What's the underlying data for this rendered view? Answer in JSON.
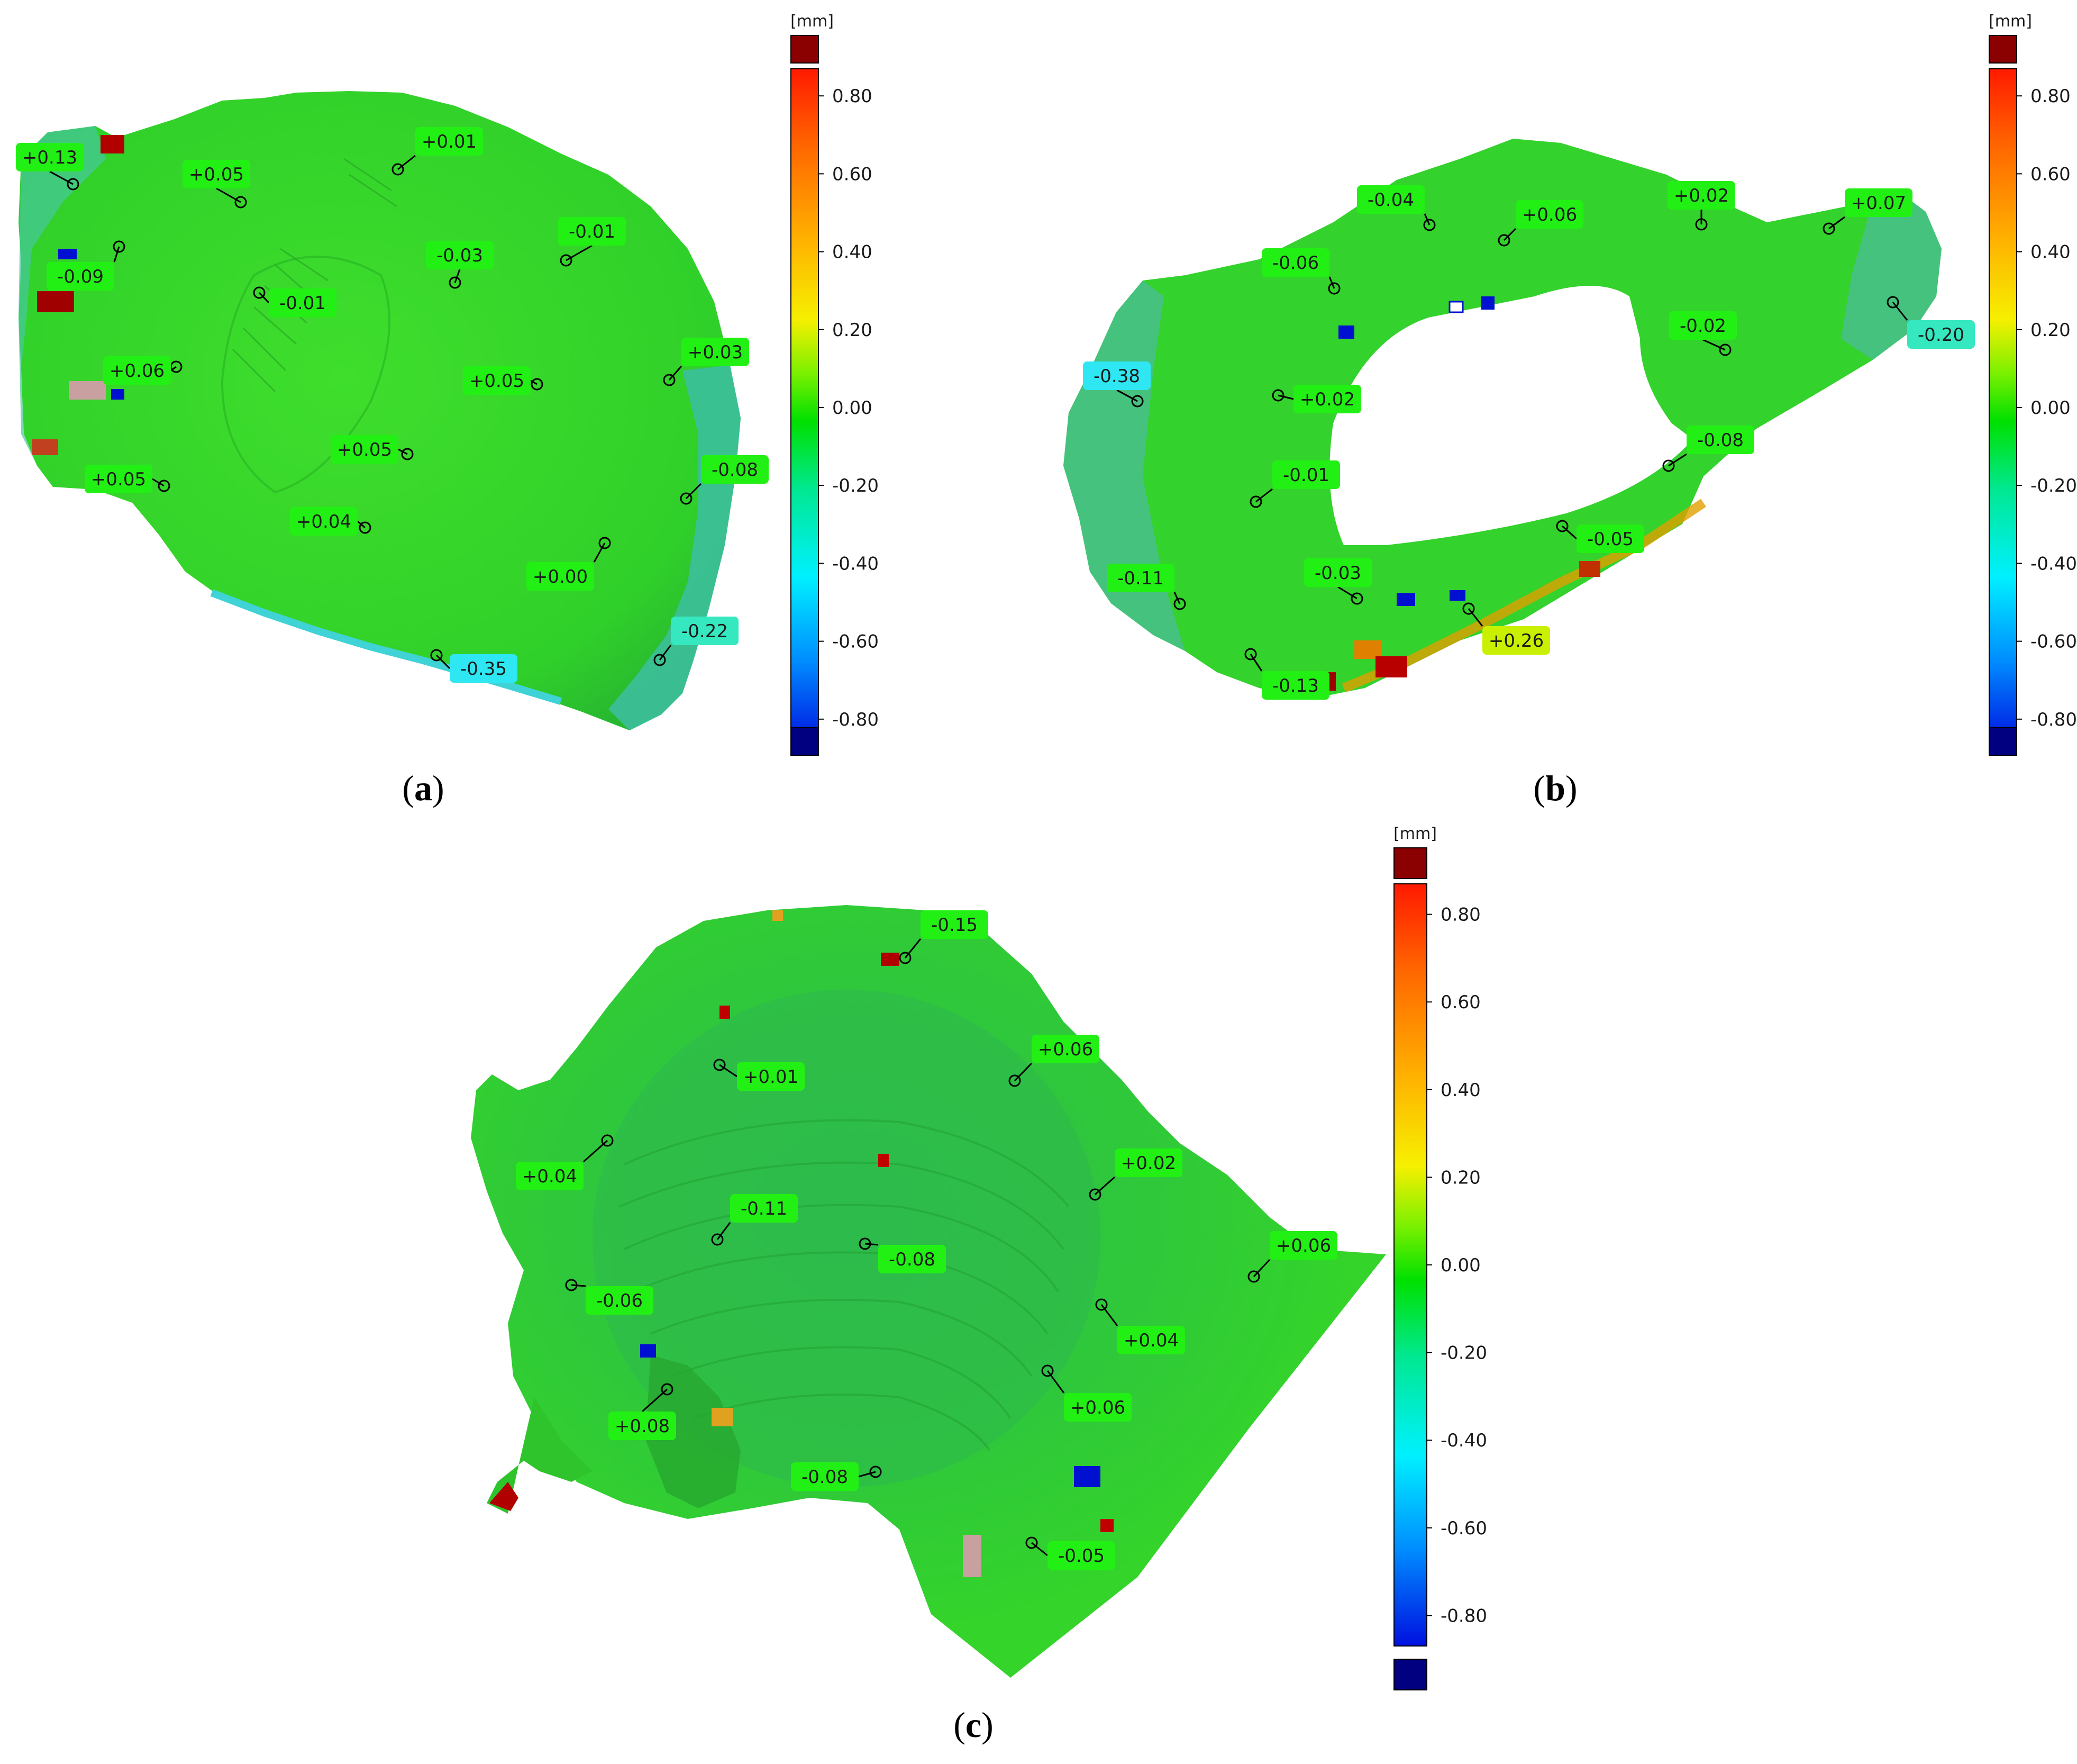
{
  "colors": {
    "surface": "#33d62a",
    "surface_dark": "#26b622",
    "teal": "#3bc4a8",
    "tag_green": "#22f014",
    "tag_teal": "#35e8c0",
    "tag_cyan": "#2ee7f2",
    "tag_yellow": "#c8f000"
  },
  "scale": {
    "unit": "[mm]",
    "ticks": [
      "0.80",
      "0.60",
      "0.40",
      "0.20",
      "0.00",
      "-0.20",
      "-0.40",
      "-0.60",
      "-0.80"
    ]
  },
  "panels": [
    {
      "id": "a",
      "caption": "a",
      "labels": [
        {
          "text": "+0.13",
          "tone": "green"
        },
        {
          "text": "+0.05",
          "tone": "green"
        },
        {
          "text": "+0.01",
          "tone": "green"
        },
        {
          "text": "-0.09",
          "tone": "green"
        },
        {
          "text": "-0.01",
          "tone": "green"
        },
        {
          "text": "-0.03",
          "tone": "green"
        },
        {
          "text": "-0.01",
          "tone": "green"
        },
        {
          "text": "+0.06",
          "tone": "green"
        },
        {
          "text": "+0.03",
          "tone": "green"
        },
        {
          "text": "+0.05",
          "tone": "green"
        },
        {
          "text": "+0.05",
          "tone": "green"
        },
        {
          "text": "+0.05",
          "tone": "green"
        },
        {
          "text": "-0.08",
          "tone": "green"
        },
        {
          "text": "+0.04",
          "tone": "green"
        },
        {
          "text": "+0.00",
          "tone": "green"
        },
        {
          "text": "-0.22",
          "tone": "teal"
        },
        {
          "text": "-0.35",
          "tone": "cyan"
        }
      ]
    },
    {
      "id": "b",
      "caption": "b",
      "labels": [
        {
          "text": "-0.04",
          "tone": "green"
        },
        {
          "text": "+0.06",
          "tone": "green"
        },
        {
          "text": "+0.02",
          "tone": "green"
        },
        {
          "text": "+0.07",
          "tone": "green"
        },
        {
          "text": "-0.06",
          "tone": "green"
        },
        {
          "text": "-0.20",
          "tone": "teal"
        },
        {
          "text": "-0.02",
          "tone": "green"
        },
        {
          "text": "-0.38",
          "tone": "cyan"
        },
        {
          "text": "+0.02",
          "tone": "green"
        },
        {
          "text": "-0.08",
          "tone": "green"
        },
        {
          "text": "-0.01",
          "tone": "green"
        },
        {
          "text": "-0.05",
          "tone": "green"
        },
        {
          "text": "-0.11",
          "tone": "green"
        },
        {
          "text": "-0.03",
          "tone": "green"
        },
        {
          "text": "+0.26",
          "tone": "yellow"
        },
        {
          "text": "-0.13",
          "tone": "green"
        }
      ]
    },
    {
      "id": "c",
      "caption": "c",
      "labels": [
        {
          "text": "-0.15",
          "tone": "green"
        },
        {
          "text": "+0.06",
          "tone": "green"
        },
        {
          "text": "+0.01",
          "tone": "green"
        },
        {
          "text": "+0.04",
          "tone": "green"
        },
        {
          "text": "+0.02",
          "tone": "green"
        },
        {
          "text": "-0.11",
          "tone": "green"
        },
        {
          "text": "-0.08",
          "tone": "green"
        },
        {
          "text": "+0.06",
          "tone": "green"
        },
        {
          "text": "-0.06",
          "tone": "green"
        },
        {
          "text": "+0.04",
          "tone": "green"
        },
        {
          "text": "+0.06",
          "tone": "green"
        },
        {
          "text": "+0.08",
          "tone": "green"
        },
        {
          "text": "-0.08",
          "tone": "green"
        },
        {
          "text": "-0.05",
          "tone": "green"
        }
      ]
    }
  ]
}
